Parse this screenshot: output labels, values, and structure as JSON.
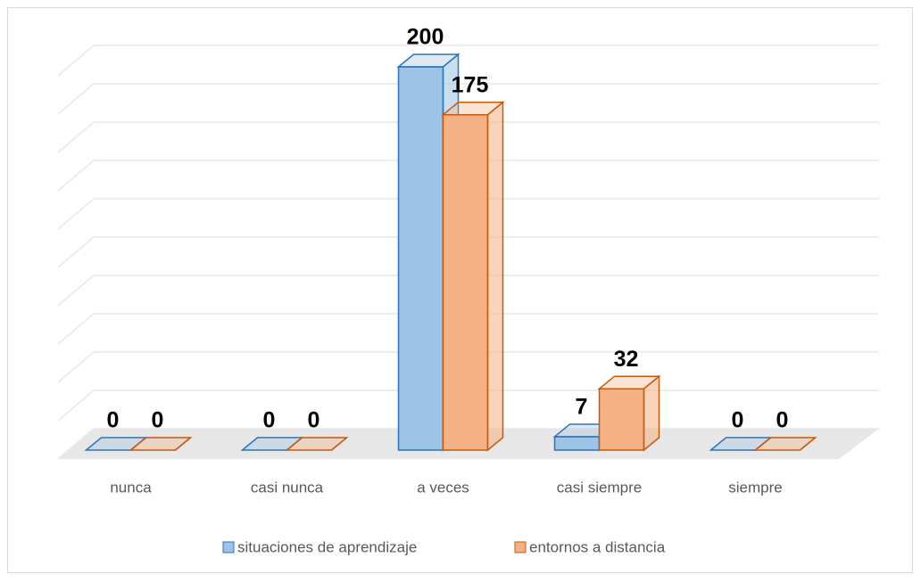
{
  "chart_data": {
    "type": "bar3d",
    "categories": [
      "nunca",
      "casi nunca",
      "a veces",
      "casi siempre",
      "siempre"
    ],
    "series": [
      {
        "name": "situaciones de aprendizaje",
        "color": "#9dc3e6",
        "stroke": "#2e75b6",
        "values": [
          0,
          0,
          200,
          7,
          0
        ]
      },
      {
        "name": "entornos a distancia",
        "color": "#f4b183",
        "stroke": "#c55a11",
        "values": [
          0,
          0,
          175,
          32,
          0
        ]
      }
    ],
    "ylim": [
      0,
      200
    ],
    "yticks": [
      0,
      20,
      40,
      60,
      80,
      100,
      120,
      140,
      160,
      180,
      200
    ],
    "grid": true,
    "legend": "bottom"
  }
}
